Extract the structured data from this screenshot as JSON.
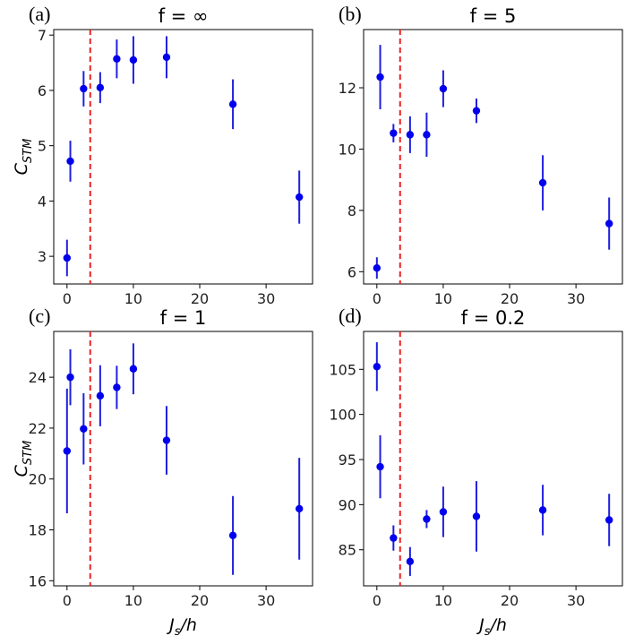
{
  "chart_data": [
    {
      "type": "scatter",
      "panel_label": "(a)",
      "title": "f = ∞",
      "xlabel": "",
      "ylabel": "C_STM",
      "xlim": [
        -2,
        37
      ],
      "ylim": [
        2.5,
        7.1
      ],
      "xticks": [
        "0",
        "10",
        "20",
        "30"
      ],
      "xtick_values": [
        0,
        10,
        20,
        30
      ],
      "yticks": [
        "3",
        "4",
        "5",
        "6",
        "7"
      ],
      "ytick_values": [
        3,
        4,
        5,
        6,
        7
      ],
      "vline_x": 3.5,
      "series": [
        {
          "name": "C_STM",
          "x": [
            0,
            0.5,
            2.5,
            5,
            7.5,
            10,
            15,
            25,
            35
          ],
          "y": [
            2.97,
            4.72,
            6.03,
            6.05,
            6.57,
            6.55,
            6.6,
            5.75,
            4.07
          ],
          "err": [
            0.33,
            0.37,
            0.32,
            0.28,
            0.35,
            0.43,
            0.38,
            0.45,
            0.48
          ]
        }
      ]
    },
    {
      "type": "scatter",
      "panel_label": "(b)",
      "title": "f = 5",
      "xlabel": "",
      "ylabel": "",
      "xlim": [
        -2,
        37
      ],
      "ylim": [
        5.6,
        13.9
      ],
      "xticks": [
        "0",
        "10",
        "20",
        "30"
      ],
      "xtick_values": [
        0,
        10,
        20,
        30
      ],
      "yticks": [
        "6",
        "8",
        "10",
        "12"
      ],
      "ytick_values": [
        6,
        8,
        10,
        12
      ],
      "vline_x": 3.5,
      "series": [
        {
          "name": "C_STM",
          "x": [
            0,
            0.5,
            2.5,
            5,
            7.5,
            10,
            15,
            25,
            35
          ],
          "y": [
            6.12,
            12.35,
            10.52,
            10.47,
            10.47,
            11.97,
            11.25,
            8.9,
            7.57
          ],
          "err": [
            0.35,
            1.05,
            0.3,
            0.6,
            0.72,
            0.6,
            0.4,
            0.9,
            0.85
          ]
        }
      ]
    },
    {
      "type": "scatter",
      "panel_label": "(c)",
      "title": "f = 1",
      "xlabel": "J_s/h",
      "ylabel": "C_STM",
      "xlim": [
        -2,
        37
      ],
      "ylim": [
        15.8,
        25.8
      ],
      "xticks": [
        "0",
        "10",
        "20",
        "30"
      ],
      "xtick_values": [
        0,
        10,
        20,
        30
      ],
      "yticks": [
        "16",
        "18",
        "20",
        "22",
        "24"
      ],
      "ytick_values": [
        16,
        18,
        20,
        22,
        24
      ],
      "vline_x": 3.5,
      "series": [
        {
          "name": "C_STM",
          "x": [
            0,
            0.5,
            2.5,
            5,
            7.5,
            10,
            15,
            25,
            35
          ],
          "y": [
            21.1,
            24.0,
            21.97,
            23.27,
            23.6,
            24.33,
            21.52,
            17.78,
            18.83
          ],
          "err": [
            2.45,
            1.1,
            1.4,
            1.2,
            0.85,
            1.0,
            1.35,
            1.55,
            2.0
          ]
        }
      ]
    },
    {
      "type": "scatter",
      "panel_label": "(d)",
      "title": "f = 0.2",
      "xlabel": "J_s/h",
      "ylabel": "",
      "xlim": [
        -2,
        37
      ],
      "ylim": [
        81,
        109.2
      ],
      "xticks": [
        "0",
        "10",
        "20",
        "30"
      ],
      "xtick_values": [
        0,
        10,
        20,
        30
      ],
      "yticks": [
        "85",
        "90",
        "95",
        "100",
        "105"
      ],
      "ytick_values": [
        85,
        90,
        95,
        100,
        105
      ],
      "vline_x": 3.5,
      "series": [
        {
          "name": "C_STM",
          "x": [
            0,
            0.5,
            2.5,
            5,
            7.5,
            10,
            15,
            25,
            35
          ],
          "y": [
            105.3,
            94.2,
            86.3,
            83.7,
            88.4,
            89.2,
            88.7,
            89.4,
            88.3
          ],
          "err": [
            2.7,
            3.5,
            1.4,
            1.6,
            1.0,
            2.8,
            3.9,
            2.8,
            2.9
          ]
        }
      ]
    }
  ]
}
